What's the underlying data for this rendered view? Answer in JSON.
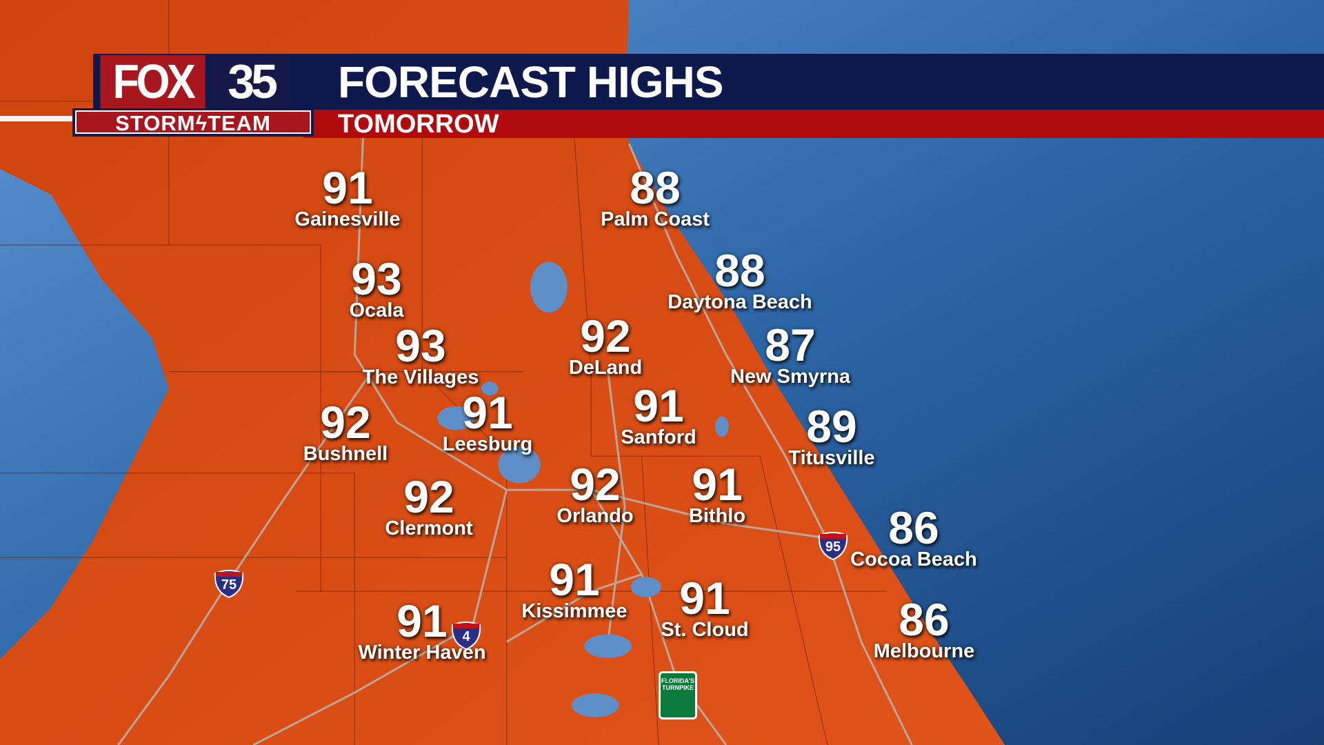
{
  "branding": {
    "logo_fox": "FOX",
    "logo_number": "35",
    "logo_storm": "STORM",
    "logo_team": "TEAM"
  },
  "header": {
    "title": "FORECAST HIGHS",
    "subtitle": "TOMORROW"
  },
  "colors": {
    "land": "#d84a12",
    "ocean": "#1f5a9a",
    "header_navy": "#0e1a4d",
    "header_red": "#b00a0c"
  },
  "cities": [
    {
      "name": "Gainesville",
      "temp": "91"
    },
    {
      "name": "Palm Coast",
      "temp": "88"
    },
    {
      "name": "Ocala",
      "temp": "93"
    },
    {
      "name": "Daytona Beach",
      "temp": "88"
    },
    {
      "name": "The Villages",
      "temp": "93"
    },
    {
      "name": "DeLand",
      "temp": "92"
    },
    {
      "name": "New Smyrna",
      "temp": "87"
    },
    {
      "name": "Leesburg",
      "temp": "91"
    },
    {
      "name": "Sanford",
      "temp": "91"
    },
    {
      "name": "Bushnell",
      "temp": "92"
    },
    {
      "name": "Titusville",
      "temp": "89"
    },
    {
      "name": "Clermont",
      "temp": "92"
    },
    {
      "name": "Orlando",
      "temp": "92"
    },
    {
      "name": "Bithlo",
      "temp": "91"
    },
    {
      "name": "Cocoa Beach",
      "temp": "86"
    },
    {
      "name": "Kissimmee",
      "temp": "91"
    },
    {
      "name": "St. Cloud",
      "temp": "91"
    },
    {
      "name": "Winter Haven",
      "temp": "91"
    },
    {
      "name": "Melbourne",
      "temp": "86"
    }
  ],
  "highways": {
    "i75": "75",
    "i4": "4",
    "i95": "95",
    "turnpike": "FLORIDA'S TURNPIKE"
  }
}
